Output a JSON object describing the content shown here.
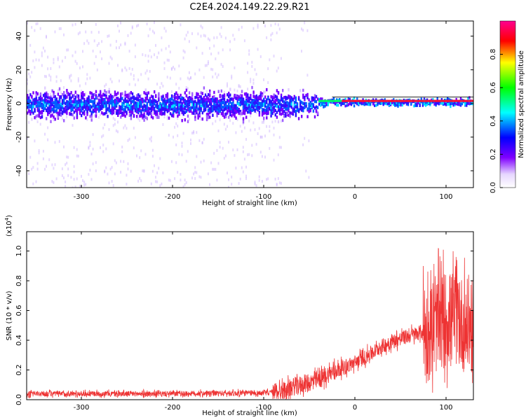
{
  "chart_data": [
    {
      "type": "heatmap",
      "title": "C2E4.2024.149.22.29.R21",
      "xlabel": "Height of straight line (km)",
      "ylabel": "Frequency (Hz)",
      "xlim": [
        -360,
        130
      ],
      "ylim": [
        -50,
        49
      ],
      "xticks": [
        -300,
        -200,
        -100,
        0,
        100
      ],
      "yticks": [
        -40,
        -20,
        0,
        20,
        40
      ],
      "colorbar": {
        "label": "Normalized spectral amplitude",
        "range": [
          0,
          1
        ],
        "ticks": [
          "0.0",
          "0.2",
          "0.4",
          "0.6",
          "0.8"
        ],
        "colormap": [
          "#ffffff",
          "#8000ff",
          "#0000ff",
          "#00ffff",
          "#00ff00",
          "#ffff00",
          "#ff0000",
          "#ff00a0"
        ]
      },
      "features": {
        "noise_band_hz": [
          -10,
          10
        ],
        "scatter_end_km": -80,
        "sparse_column_km": [
          -60,
          -50
        ],
        "signal_line_hz": 1.5,
        "signal_start_km": -40
      }
    },
    {
      "type": "line",
      "xlabel": "Height of straight line (km)",
      "ylabel": "SNR (10 * v/v)",
      "yexponent": "(x10",
      "yexponent_power": "4",
      "yexponent_close": ")",
      "xlim": [
        -360,
        130
      ],
      "ylim": [
        0,
        1.13
      ],
      "xticks": [
        -300,
        -200,
        -100,
        0,
        100
      ],
      "yticks": [
        "0.0",
        "0.2",
        "0.4",
        "0.6",
        "0.8",
        "1.0"
      ],
      "color": "#ee3333",
      "x": [
        -360,
        -300,
        -200,
        -100,
        -80,
        -60,
        -40,
        -30,
        -20,
        -10,
        0,
        10,
        20,
        30,
        40,
        50,
        60,
        70,
        75,
        80,
        90,
        100,
        110,
        120,
        130
      ],
      "values": [
        0.04,
        0.04,
        0.04,
        0.045,
        0.06,
        0.1,
        0.13,
        0.17,
        0.2,
        0.22,
        0.25,
        0.28,
        0.32,
        0.36,
        0.39,
        0.41,
        0.43,
        0.45,
        0.46,
        0.44,
        0.5,
        0.55,
        0.55,
        0.5,
        0.48
      ]
    }
  ]
}
